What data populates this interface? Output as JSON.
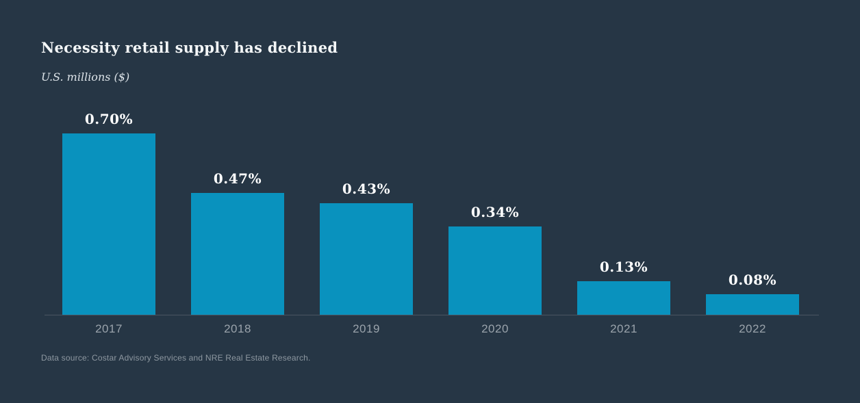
{
  "header": {
    "title": "Necessity retail supply has declined",
    "subtitle": "U.S. millions ($)"
  },
  "footer": {
    "source_note": "Data source: Costar Advisory Services and NRE Real Estate Research."
  },
  "chart_data": {
    "type": "bar",
    "title": "Necessity retail supply has declined",
    "subtitle": "U.S. millions ($)",
    "categories": [
      "2017",
      "2018",
      "2019",
      "2020",
      "2021",
      "2022"
    ],
    "values": [
      0.7,
      0.47,
      0.43,
      0.34,
      0.13,
      0.08
    ],
    "value_labels": [
      "0.70%",
      "0.47%",
      "0.43%",
      "0.34%",
      "0.13%",
      "0.08%"
    ],
    "xlabel": "",
    "ylabel": "",
    "ylim": [
      0,
      0.7
    ],
    "grid": false,
    "legend": false,
    "source_note": "Data source: Costar Advisory Services and NRE Real Estate Research.",
    "colors": {
      "background": "#263645",
      "bar": "#0992be",
      "value_label": "#fdfefe",
      "title": "#f3f6f7",
      "axis_line": "#4a5562",
      "tick_label": "#9aa3ab",
      "source_text": "#8e98a1"
    }
  }
}
